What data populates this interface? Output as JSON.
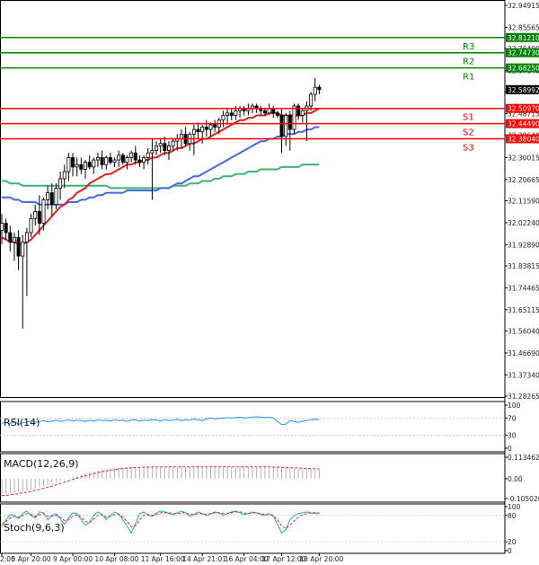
{
  "chart_data": {
    "type": "candlestick",
    "price_axis": {
      "ticks": [
        "32.94915",
        "32.85565",
        "32.76490",
        "32.67140",
        "32.58065",
        "32.48715",
        "32.39640",
        "32.30015",
        "32.20665",
        "32.11590",
        "32.02240",
        "31.92890",
        "31.83815",
        "31.74465",
        "31.65115",
        "31.56040",
        "31.46690",
        "31.37340",
        "31.28265"
      ],
      "ylim": [
        31.28265,
        32.94915
      ]
    },
    "time_axis": {
      "labels": [
        "2:00",
        "5 Apr 20:00",
        "9 Apr 00:00",
        "10 Apr 08:00",
        "11 Apr 16:00",
        "14 Apr 21:01",
        "16 Apr 04:00",
        "17 Apr 12:00",
        "18 Apr 20:00"
      ],
      "bar_index": [
        0,
        7,
        17,
        27,
        38,
        48,
        58,
        67,
        76
      ]
    },
    "levels": [
      {
        "name": "R3",
        "value": "32.81210",
        "color": "#008000"
      },
      {
        "name": "R2",
        "value": "32.74730",
        "color": "#008000"
      },
      {
        "name": "R1",
        "value": "32.68250",
        "color": "#008000"
      },
      {
        "name": "S1",
        "value": "32.50970",
        "color": "#ff0000"
      },
      {
        "name": "S2",
        "value": "32.44490",
        "color": "#ff0000"
      },
      {
        "name": "S3",
        "value": "32.38040",
        "color": "#ff0000"
      }
    ],
    "last_price": {
      "value": "32.58992",
      "color": "#000000"
    },
    "candles": [
      [
        31.99,
        32.06,
        31.93,
        32.02
      ],
      [
        32.02,
        32.04,
        31.95,
        31.98
      ],
      [
        31.98,
        32.01,
        31.9,
        31.94
      ],
      [
        31.94,
        31.98,
        31.86,
        31.96
      ],
      [
        31.96,
        31.99,
        31.82,
        31.88
      ],
      [
        31.88,
        31.97,
        31.57,
        31.94
      ],
      [
        31.94,
        32.0,
        31.71,
        31.98
      ],
      [
        31.98,
        32.06,
        31.96,
        32.04
      ],
      [
        32.04,
        32.1,
        32.01,
        32.07
      ],
      [
        32.07,
        32.14,
        31.97,
        32.02
      ],
      [
        32.02,
        32.13,
        31.99,
        32.12
      ],
      [
        32.12,
        32.18,
        32.08,
        32.15
      ],
      [
        32.15,
        32.19,
        32.05,
        32.1
      ],
      [
        32.1,
        32.19,
        32.08,
        32.17
      ],
      [
        32.17,
        32.24,
        32.12,
        32.21
      ],
      [
        32.21,
        32.27,
        32.17,
        32.24
      ],
      [
        32.24,
        32.32,
        32.2,
        32.3
      ],
      [
        32.3,
        32.32,
        32.22,
        32.26
      ],
      [
        32.26,
        32.3,
        32.22,
        32.27
      ],
      [
        32.27,
        32.3,
        32.23,
        32.25
      ],
      [
        32.25,
        32.29,
        32.21,
        32.28
      ],
      [
        32.28,
        32.31,
        32.25,
        32.26
      ],
      [
        32.26,
        32.3,
        32.23,
        32.29
      ],
      [
        32.29,
        32.32,
        32.26,
        32.3
      ],
      [
        32.3,
        32.33,
        32.25,
        32.27
      ],
      [
        32.27,
        32.31,
        32.25,
        32.3
      ],
      [
        32.3,
        32.32,
        32.27,
        32.28
      ],
      [
        32.28,
        32.3,
        32.26,
        32.29
      ],
      [
        32.29,
        32.33,
        32.26,
        32.31
      ],
      [
        32.31,
        32.32,
        32.27,
        32.28
      ],
      [
        32.28,
        32.31,
        32.25,
        32.3
      ],
      [
        32.3,
        32.33,
        32.28,
        32.32
      ],
      [
        32.32,
        32.35,
        32.27,
        32.29
      ],
      [
        32.29,
        32.31,
        32.26,
        32.28
      ],
      [
        32.28,
        32.31,
        32.25,
        32.3
      ],
      [
        32.3,
        32.34,
        32.27,
        32.32
      ],
      [
        32.32,
        32.38,
        32.12,
        32.33
      ],
      [
        32.33,
        32.37,
        32.31,
        32.35
      ],
      [
        32.35,
        32.38,
        32.32,
        32.36
      ],
      [
        32.36,
        32.39,
        32.31,
        32.33
      ],
      [
        32.33,
        32.37,
        32.29,
        32.35
      ],
      [
        32.35,
        32.38,
        32.33,
        32.37
      ],
      [
        32.37,
        32.4,
        32.33,
        32.38
      ],
      [
        32.38,
        32.42,
        32.34,
        32.4
      ],
      [
        32.4,
        32.43,
        32.35,
        32.36
      ],
      [
        32.36,
        32.41,
        32.33,
        32.4
      ],
      [
        32.4,
        32.44,
        32.31,
        32.42
      ],
      [
        32.42,
        32.45,
        32.38,
        32.41
      ],
      [
        32.41,
        32.44,
        32.36,
        32.43
      ],
      [
        32.43,
        32.46,
        32.39,
        32.42
      ],
      [
        32.42,
        32.45,
        32.39,
        32.44
      ],
      [
        32.44,
        32.46,
        32.41,
        32.43
      ],
      [
        32.43,
        32.47,
        32.4,
        32.46
      ],
      [
        32.46,
        32.5,
        32.43,
        32.48
      ],
      [
        32.48,
        32.51,
        32.44,
        32.49
      ],
      [
        32.49,
        32.51,
        32.46,
        32.48
      ],
      [
        32.48,
        32.52,
        32.46,
        32.5
      ],
      [
        32.5,
        32.52,
        32.47,
        32.51
      ],
      [
        32.51,
        32.52,
        32.48,
        32.5
      ],
      [
        32.5,
        32.53,
        32.48,
        32.51
      ],
      [
        32.51,
        32.53,
        32.49,
        32.52
      ],
      [
        32.52,
        32.53,
        32.49,
        32.51
      ],
      [
        32.51,
        32.52,
        32.48,
        32.5
      ],
      [
        32.5,
        32.51,
        32.48,
        32.49
      ],
      [
        32.49,
        32.53,
        32.48,
        32.51
      ],
      [
        32.51,
        32.52,
        32.47,
        32.49
      ],
      [
        32.49,
        32.5,
        32.47,
        32.48
      ],
      [
        32.48,
        32.51,
        32.32,
        32.39
      ],
      [
        32.39,
        32.49,
        32.35,
        32.48
      ],
      [
        32.48,
        32.5,
        32.33,
        32.42
      ],
      [
        32.42,
        32.53,
        32.4,
        32.52
      ],
      [
        32.52,
        32.53,
        32.46,
        32.48
      ],
      [
        32.48,
        32.51,
        32.45,
        32.5
      ],
      [
        32.5,
        32.54,
        32.37,
        32.52
      ],
      [
        32.52,
        32.58,
        32.5,
        32.57
      ],
      [
        32.57,
        32.64,
        32.54,
        32.6
      ],
      [
        32.6,
        32.61,
        32.57,
        32.59
      ]
    ],
    "sma_red": [
      31.96,
      31.95,
      31.94,
      31.94,
      31.93,
      31.93,
      31.94,
      31.95,
      31.97,
      31.99,
      32.01,
      32.03,
      32.05,
      32.07,
      32.09,
      32.1,
      32.12,
      32.13,
      32.15,
      32.16,
      32.17,
      32.19,
      32.2,
      32.21,
      32.22,
      32.23,
      32.23,
      32.24,
      32.25,
      32.26,
      32.27,
      32.27,
      32.28,
      32.28,
      32.29,
      32.29,
      32.3,
      32.3,
      32.31,
      32.32,
      32.32,
      32.33,
      32.34,
      32.34,
      32.35,
      32.36,
      32.36,
      32.37,
      32.38,
      32.38,
      32.39,
      32.4,
      32.41,
      32.42,
      32.43,
      32.44,
      32.45,
      32.46,
      32.46,
      32.47,
      32.47,
      32.48,
      32.48,
      32.48,
      32.49,
      32.49,
      32.49,
      32.48,
      32.48,
      32.48,
      32.48,
      32.48,
      32.48,
      32.49,
      32.49,
      32.5,
      32.51
    ],
    "sma_blue": [
      32.13,
      32.13,
      32.13,
      32.12,
      32.12,
      32.11,
      32.11,
      32.11,
      32.11,
      32.1,
      32.1,
      32.1,
      32.1,
      32.1,
      32.1,
      32.1,
      32.11,
      32.11,
      32.11,
      32.12,
      32.12,
      32.13,
      32.13,
      32.14,
      32.14,
      32.15,
      32.15,
      32.15,
      32.15,
      32.15,
      32.16,
      32.16,
      32.16,
      32.16,
      32.16,
      32.16,
      32.16,
      32.16,
      32.17,
      32.17,
      32.17,
      32.18,
      32.19,
      32.19,
      32.2,
      32.21,
      32.22,
      32.22,
      32.23,
      32.24,
      32.25,
      32.26,
      32.27,
      32.28,
      32.29,
      32.3,
      32.31,
      32.32,
      32.33,
      32.34,
      32.35,
      32.36,
      32.37,
      32.37,
      32.38,
      32.38,
      32.39,
      32.39,
      32.4,
      32.4,
      32.4,
      32.41,
      32.41,
      32.42,
      32.42,
      32.43,
      32.43
    ],
    "sma_green": [
      32.2,
      32.2,
      32.19,
      32.19,
      32.19,
      32.18,
      32.18,
      32.18,
      32.18,
      32.18,
      32.18,
      32.18,
      32.18,
      32.18,
      32.18,
      32.18,
      32.18,
      32.18,
      32.18,
      32.18,
      32.18,
      32.18,
      32.18,
      32.18,
      32.18,
      32.18,
      32.17,
      32.17,
      32.17,
      32.17,
      32.17,
      32.17,
      32.17,
      32.17,
      32.17,
      32.17,
      32.17,
      32.17,
      32.17,
      32.17,
      32.17,
      32.18,
      32.18,
      32.18,
      32.18,
      32.19,
      32.19,
      32.19,
      32.2,
      32.2,
      32.2,
      32.21,
      32.21,
      32.22,
      32.22,
      32.22,
      32.23,
      32.23,
      32.23,
      32.24,
      32.24,
      32.24,
      32.25,
      32.25,
      32.25,
      32.25,
      32.25,
      32.26,
      32.26,
      32.26,
      32.26,
      32.26,
      32.27,
      32.27,
      32.27,
      32.27,
      32.27
    ],
    "rsi": {
      "name": "RSI(14)",
      "ticks": [
        "100",
        "70",
        "30",
        "0"
      ],
      "ylim": [
        0,
        100
      ],
      "values": [
        58,
        60,
        57,
        62,
        55,
        59,
        61,
        63,
        60,
        62,
        64,
        61,
        63,
        65,
        62,
        64,
        66,
        63,
        65,
        64,
        62,
        65,
        63,
        66,
        64,
        65,
        63,
        66,
        64,
        65,
        62,
        65,
        66,
        63,
        65,
        64,
        66,
        65,
        63,
        66,
        64,
        65,
        67,
        64,
        66,
        65,
        67,
        66,
        64,
        68,
        70,
        68,
        69,
        70,
        71,
        70,
        71,
        72,
        70,
        71,
        72,
        73,
        72,
        71,
        72,
        70,
        62,
        55,
        56,
        64,
        62,
        60,
        63,
        64,
        66,
        67,
        66
      ]
    },
    "macd": {
      "name": "MACD(12,26,9)",
      "ticks": [
        "0.113462",
        "0.00",
        "-0.105026"
      ],
      "ylim": [
        -0.105026,
        0.113462
      ],
      "histogram": [
        -0.08,
        -0.078,
        -0.076,
        -0.073,
        -0.07,
        -0.066,
        -0.062,
        -0.057,
        -0.052,
        -0.046,
        -0.04,
        -0.033,
        -0.026,
        -0.019,
        -0.012,
        -0.005,
        0.002,
        0.009,
        0.016,
        0.022,
        0.028,
        0.033,
        0.038,
        0.042,
        0.046,
        0.05,
        0.053,
        0.056,
        0.058,
        0.06,
        0.061,
        0.062,
        0.062,
        0.062,
        0.062,
        0.062,
        0.061,
        0.061,
        0.061,
        0.061,
        0.061,
        0.061,
        0.061,
        0.061,
        0.061,
        0.061,
        0.061,
        0.061,
        0.061,
        0.061,
        0.061,
        0.061,
        0.061,
        0.061,
        0.061,
        0.061,
        0.061,
        0.061,
        0.061,
        0.061,
        0.061,
        0.061,
        0.061,
        0.061,
        0.06,
        0.06,
        0.059,
        0.058,
        0.056,
        0.055,
        0.054,
        0.052,
        0.051,
        0.05,
        0.049,
        0.049,
        0.048
      ],
      "signal": [
        -0.09,
        -0.088,
        -0.085,
        -0.082,
        -0.079,
        -0.075,
        -0.071,
        -0.067,
        -0.062,
        -0.057,
        -0.051,
        -0.045,
        -0.039,
        -0.032,
        -0.025,
        -0.018,
        -0.011,
        -0.004,
        0.003,
        0.01,
        0.016,
        0.022,
        0.027,
        0.032,
        0.037,
        0.041,
        0.045,
        0.048,
        0.051,
        0.054,
        0.056,
        0.058,
        0.059,
        0.06,
        0.061,
        0.061,
        0.062,
        0.062,
        0.062,
        0.062,
        0.062,
        0.062,
        0.062,
        0.062,
        0.062,
        0.062,
        0.062,
        0.062,
        0.062,
        0.062,
        0.062,
        0.062,
        0.062,
        0.062,
        0.062,
        0.062,
        0.062,
        0.062,
        0.062,
        0.062,
        0.062,
        0.062,
        0.062,
        0.062,
        0.062,
        0.061,
        0.061,
        0.06,
        0.059,
        0.058,
        0.057,
        0.056,
        0.055,
        0.054,
        0.053,
        0.052,
        0.051
      ]
    },
    "stoch": {
      "name": "Stoch(9,6,3)",
      "ticks": [
        "100",
        "80",
        "20",
        "0"
      ],
      "ylim": [
        0,
        100
      ],
      "k": [
        55,
        70,
        82,
        80,
        72,
        85,
        90,
        80,
        74,
        88,
        86,
        70,
        80,
        84,
        72,
        60,
        74,
        86,
        84,
        70,
        58,
        64,
        80,
        88,
        82,
        70,
        80,
        88,
        84,
        70,
        56,
        40,
        62,
        84,
        88,
        80,
        78,
        86,
        90,
        88,
        84,
        82,
        86,
        90,
        86,
        78,
        82,
        88,
        84,
        80,
        84,
        88,
        86,
        80,
        84,
        88,
        90,
        86,
        82,
        84,
        88,
        86,
        82,
        80,
        84,
        78,
        60,
        40,
        48,
        70,
        80,
        84,
        86,
        88,
        86,
        84,
        85
      ],
      "d": [
        60,
        66,
        74,
        78,
        76,
        80,
        84,
        82,
        78,
        82,
        84,
        78,
        78,
        80,
        76,
        68,
        70,
        78,
        82,
        76,
        66,
        64,
        72,
        80,
        82,
        76,
        78,
        82,
        82,
        76,
        66,
        54,
        56,
        70,
        80,
        82,
        80,
        82,
        86,
        86,
        86,
        84,
        84,
        86,
        86,
        82,
        82,
        84,
        84,
        82,
        84,
        86,
        86,
        84,
        84,
        86,
        88,
        88,
        86,
        84,
        86,
        86,
        84,
        82,
        82,
        80,
        70,
        56,
        50,
        58,
        68,
        76,
        82,
        84,
        86,
        86,
        86
      ]
    }
  }
}
